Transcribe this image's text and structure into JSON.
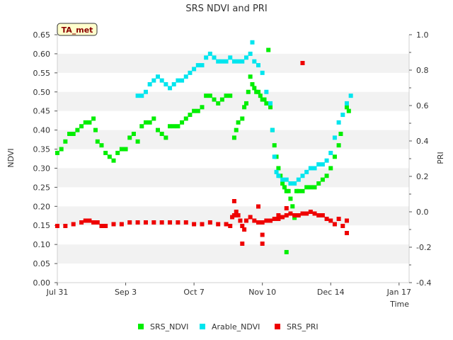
{
  "chart_data": {
    "type": "scatter",
    "title": "SRS NDVI and PRI",
    "badge": "TA_met",
    "xlabel": "Time",
    "ylabel": "NDVI",
    "y2label": "PRI",
    "xlim": [
      0,
      175
    ],
    "ylim": [
      0.0,
      0.65
    ],
    "y2lim": [
      -0.4,
      1.0
    ],
    "grid": "horizontal bands",
    "legend_position": "bottom-center",
    "x_ticks": [
      {
        "label": "Jul 31",
        "day": 0
      },
      {
        "label": "Sep 3",
        "day": 34
      },
      {
        "label": "Oct 7",
        "day": 68
      },
      {
        "label": "Nov 10",
        "day": 102
      },
      {
        "label": "Dec 14",
        "day": 136
      },
      {
        "label": "Jan 17",
        "day": 170
      }
    ],
    "y_ticks": [
      "0.00",
      "0.05",
      "0.10",
      "0.15",
      "0.20",
      "0.25",
      "0.30",
      "0.35",
      "0.40",
      "0.45",
      "0.50",
      "0.55",
      "0.60",
      "0.65"
    ],
    "y2_ticks": [
      "-0.4",
      "-0.2",
      "0.0",
      "0.2",
      "0.4",
      "0.6",
      "0.8",
      "1.0"
    ],
    "series": [
      {
        "name": "SRS_NDVI",
        "axis": "left",
        "color": "#00ee00",
        "points": [
          [
            0,
            0.34
          ],
          [
            2,
            0.35
          ],
          [
            4,
            0.37
          ],
          [
            6,
            0.39
          ],
          [
            8,
            0.39
          ],
          [
            10,
            0.4
          ],
          [
            12,
            0.41
          ],
          [
            14,
            0.42
          ],
          [
            16,
            0.42
          ],
          [
            18,
            0.43
          ],
          [
            19,
            0.4
          ],
          [
            20,
            0.37
          ],
          [
            22,
            0.36
          ],
          [
            24,
            0.34
          ],
          [
            26,
            0.33
          ],
          [
            28,
            0.32
          ],
          [
            30,
            0.34
          ],
          [
            32,
            0.35
          ],
          [
            34,
            0.35
          ],
          [
            36,
            0.38
          ],
          [
            38,
            0.39
          ],
          [
            40,
            0.37
          ],
          [
            42,
            0.41
          ],
          [
            44,
            0.42
          ],
          [
            46,
            0.42
          ],
          [
            48,
            0.43
          ],
          [
            50,
            0.4
          ],
          [
            52,
            0.39
          ],
          [
            54,
            0.38
          ],
          [
            56,
            0.41
          ],
          [
            58,
            0.41
          ],
          [
            60,
            0.41
          ],
          [
            62,
            0.42
          ],
          [
            64,
            0.43
          ],
          [
            66,
            0.44
          ],
          [
            68,
            0.45
          ],
          [
            70,
            0.45
          ],
          [
            72,
            0.46
          ],
          [
            74,
            0.49
          ],
          [
            76,
            0.49
          ],
          [
            78,
            0.48
          ],
          [
            80,
            0.47
          ],
          [
            82,
            0.48
          ],
          [
            84,
            0.49
          ],
          [
            86,
            0.49
          ],
          [
            88,
            0.38
          ],
          [
            89,
            0.4
          ],
          [
            90,
            0.42
          ],
          [
            92,
            0.43
          ],
          [
            93,
            0.46
          ],
          [
            94,
            0.47
          ],
          [
            95,
            0.5
          ],
          [
            96,
            0.54
          ],
          [
            97,
            0.52
          ],
          [
            98,
            0.51
          ],
          [
            99,
            0.5
          ],
          [
            100,
            0.5
          ],
          [
            101,
            0.49
          ],
          [
            102,
            0.48
          ],
          [
            103,
            0.48
          ],
          [
            104,
            0.47
          ],
          [
            105,
            0.61
          ],
          [
            106,
            0.46
          ],
          [
            107,
            0.4
          ],
          [
            108,
            0.36
          ],
          [
            109,
            0.33
          ],
          [
            110,
            0.3
          ],
          [
            111,
            0.28
          ],
          [
            112,
            0.26
          ],
          [
            113,
            0.25
          ],
          [
            114,
            0.24
          ],
          [
            115,
            0.24
          ],
          [
            116,
            0.22
          ],
          [
            117,
            0.2
          ],
          [
            118,
            0.17
          ],
          [
            119,
            0.24
          ],
          [
            120,
            0.24
          ],
          [
            122,
            0.24
          ],
          [
            124,
            0.25
          ],
          [
            126,
            0.25
          ],
          [
            128,
            0.25
          ],
          [
            130,
            0.26
          ],
          [
            132,
            0.27
          ],
          [
            134,
            0.28
          ],
          [
            136,
            0.3
          ],
          [
            138,
            0.33
          ],
          [
            140,
            0.36
          ],
          [
            141,
            0.39
          ],
          [
            144,
            0.46
          ],
          [
            145,
            0.45
          ],
          [
            114,
            0.08
          ]
        ]
      },
      {
        "name": "Arable_NDVI",
        "axis": "left",
        "color": "#00e5ee",
        "points": [
          [
            40,
            0.49
          ],
          [
            42,
            0.49
          ],
          [
            44,
            0.5
          ],
          [
            46,
            0.52
          ],
          [
            48,
            0.53
          ],
          [
            50,
            0.54
          ],
          [
            52,
            0.53
          ],
          [
            54,
            0.52
          ],
          [
            56,
            0.51
          ],
          [
            58,
            0.52
          ],
          [
            60,
            0.53
          ],
          [
            62,
            0.53
          ],
          [
            64,
            0.54
          ],
          [
            66,
            0.55
          ],
          [
            68,
            0.56
          ],
          [
            70,
            0.57
          ],
          [
            72,
            0.57
          ],
          [
            74,
            0.59
          ],
          [
            76,
            0.6
          ],
          [
            78,
            0.59
          ],
          [
            80,
            0.58
          ],
          [
            82,
            0.58
          ],
          [
            84,
            0.58
          ],
          [
            86,
            0.59
          ],
          [
            88,
            0.58
          ],
          [
            90,
            0.58
          ],
          [
            92,
            0.58
          ],
          [
            94,
            0.59
          ],
          [
            96,
            0.6
          ],
          [
            97,
            0.63
          ],
          [
            98,
            0.58
          ],
          [
            100,
            0.57
          ],
          [
            102,
            0.55
          ],
          [
            104,
            0.5
          ],
          [
            106,
            0.47
          ],
          [
            107,
            0.4
          ],
          [
            108,
            0.33
          ],
          [
            109,
            0.29
          ],
          [
            110,
            0.28
          ],
          [
            112,
            0.27
          ],
          [
            114,
            0.27
          ],
          [
            116,
            0.26
          ],
          [
            118,
            0.26
          ],
          [
            120,
            0.27
          ],
          [
            122,
            0.28
          ],
          [
            124,
            0.29
          ],
          [
            126,
            0.3
          ],
          [
            128,
            0.3
          ],
          [
            130,
            0.31
          ],
          [
            132,
            0.31
          ],
          [
            134,
            0.32
          ],
          [
            136,
            0.34
          ],
          [
            138,
            0.38
          ],
          [
            140,
            0.42
          ],
          [
            142,
            0.44
          ],
          [
            144,
            0.47
          ],
          [
            146,
            0.49
          ]
        ]
      },
      {
        "name": "SRS_PRI",
        "axis": "right",
        "color": "#ee0000",
        "points": [
          [
            0,
            -0.08
          ],
          [
            4,
            -0.08
          ],
          [
            8,
            -0.07
          ],
          [
            12,
            -0.06
          ],
          [
            14,
            -0.05
          ],
          [
            16,
            -0.05
          ],
          [
            18,
            -0.06
          ],
          [
            20,
            -0.06
          ],
          [
            22,
            -0.08
          ],
          [
            24,
            -0.08
          ],
          [
            28,
            -0.07
          ],
          [
            32,
            -0.07
          ],
          [
            36,
            -0.06
          ],
          [
            40,
            -0.06
          ],
          [
            44,
            -0.06
          ],
          [
            48,
            -0.06
          ],
          [
            52,
            -0.06
          ],
          [
            56,
            -0.06
          ],
          [
            60,
            -0.06
          ],
          [
            64,
            -0.06
          ],
          [
            68,
            -0.07
          ],
          [
            72,
            -0.07
          ],
          [
            76,
            -0.06
          ],
          [
            80,
            -0.07
          ],
          [
            84,
            -0.07
          ],
          [
            86,
            -0.08
          ],
          [
            87,
            -0.03
          ],
          [
            88,
            -0.02
          ],
          [
            89,
            0.0
          ],
          [
            90,
            -0.02
          ],
          [
            91,
            -0.05
          ],
          [
            92,
            -0.08
          ],
          [
            93,
            -0.1
          ],
          [
            94,
            -0.05
          ],
          [
            96,
            -0.03
          ],
          [
            98,
            -0.05
          ],
          [
            100,
            -0.06
          ],
          [
            102,
            -0.06
          ],
          [
            104,
            -0.05
          ],
          [
            106,
            -0.05
          ],
          [
            108,
            -0.04
          ],
          [
            110,
            -0.04
          ],
          [
            112,
            -0.03
          ],
          [
            114,
            -0.02
          ],
          [
            116,
            -0.01
          ],
          [
            118,
            -0.02
          ],
          [
            120,
            -0.02
          ],
          [
            122,
            -0.01
          ],
          [
            124,
            -0.01
          ],
          [
            126,
            0.0
          ],
          [
            128,
            -0.01
          ],
          [
            130,
            -0.02
          ],
          [
            132,
            -0.02
          ],
          [
            134,
            -0.04
          ],
          [
            136,
            -0.05
          ],
          [
            138,
            -0.07
          ],
          [
            140,
            -0.04
          ],
          [
            142,
            -0.08
          ],
          [
            144,
            -0.05
          ],
          [
            144,
            -0.12
          ],
          [
            88,
            0.06
          ],
          [
            92,
            -0.18
          ],
          [
            100,
            0.03
          ],
          [
            102,
            -0.13
          ],
          [
            102,
            -0.18
          ],
          [
            110,
            -0.02
          ],
          [
            114,
            0.02
          ],
          [
            122,
            0.84
          ]
        ]
      }
    ]
  }
}
